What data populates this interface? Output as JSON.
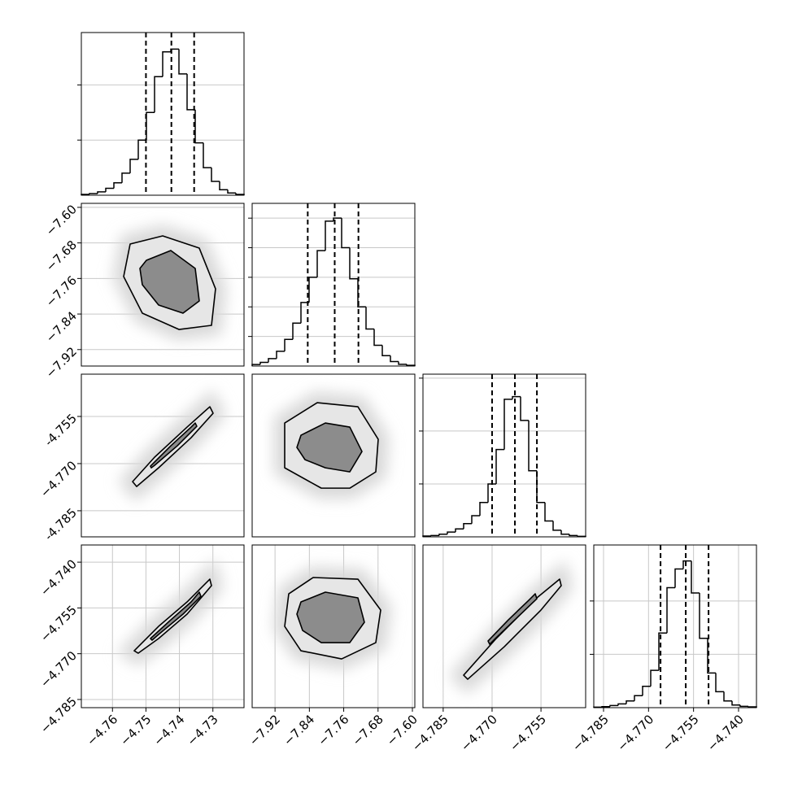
{
  "chart_data": [
    {
      "type": "histogram",
      "color": "#000000",
      "grid": true,
      "bins": [
        -4.7693,
        -4.76687,
        -4.76444,
        -4.76201,
        -4.75958,
        -4.75715,
        -4.75472,
        -4.75229,
        -4.74986,
        -4.74743,
        -4.745,
        -4.74257,
        -4.74014,
        -4.73771,
        -4.73528,
        -4.73285,
        -4.73042,
        -4.72799,
        -4.72556,
        -4.72313,
        -4.7207
      ],
      "values": [
        3,
        6,
        12,
        25,
        45,
        80,
        130,
        200,
        300,
        430,
        520,
        530,
        440,
        310,
        190,
        100,
        50,
        20,
        8,
        3
      ],
      "quantiles": [
        -4.75,
        -4.7424,
        -4.7356
      ],
      "xlim": [
        -4.7693,
        -4.7207
      ],
      "ylim": [
        0,
        590
      ],
      "yticks": [
        200,
        400
      ]
    },
    {
      "type": "contour",
      "color": "#000000",
      "grid": true,
      "xlim": [
        -4.7693,
        -4.7207
      ],
      "ylim": [
        -7.957,
        -7.591
      ],
      "yticks": [
        {
          "value": -7.6,
          "label": "−7.60"
        },
        {
          "value": -7.68,
          "label": "−7.68"
        },
        {
          "value": -7.76,
          "label": "−7.76"
        },
        {
          "value": -7.84,
          "label": "−7.84"
        },
        {
          "value": -7.92,
          "label": "−7.92"
        }
      ],
      "contours": [
        {
          "x": [
            -4.75472,
            -4.745,
            -4.73407,
            -4.72921,
            -4.73042,
            -4.74014,
            -4.75108,
            -4.75666
          ],
          "y": [
            -7.6825,
            -7.6642,
            -7.6917,
            -7.7832,
            -7.8655,
            -7.8747,
            -7.8381,
            -7.7557
          ]
        },
        {
          "x": [
            -4.74986,
            -4.74257,
            -4.73528,
            -4.73407,
            -4.73893,
            -4.74622,
            -4.75108,
            -4.7518
          ],
          "y": [
            -7.7191,
            -7.6971,
            -7.7374,
            -7.8106,
            -7.8381,
            -7.8198,
            -7.774,
            -7.7374
          ]
        }
      ]
    },
    {
      "type": "histogram",
      "color": "#000000",
      "grid": true,
      "bins": [
        -7.9733,
        -7.95435,
        -7.9354,
        -7.91645,
        -7.8975,
        -7.87855,
        -7.8596,
        -7.84065,
        -7.8217,
        -7.80275,
        -7.7838,
        -7.76485,
        -7.7459,
        -7.72695,
        -7.708,
        -7.68905,
        -7.6701,
        -7.65115,
        -7.6322,
        -7.61325,
        -7.5943
      ],
      "values": [
        10,
        25,
        50,
        100,
        180,
        290,
        430,
        600,
        780,
        980,
        1000,
        800,
        590,
        400,
        250,
        140,
        70,
        30,
        12,
        5
      ],
      "quantiles": [
        -7.8438,
        -7.781,
        -7.7257
      ],
      "xlim": [
        -7.9733,
        -7.5943
      ],
      "ylim": [
        0,
        1100
      ],
      "yticks": [
        200,
        400,
        600,
        800,
        1000
      ]
    },
    {
      "type": "contour",
      "color": "#000000",
      "grid": true,
      "xlim": [
        -4.7693,
        -4.7207
      ],
      "ylim": [
        -4.7933,
        -4.74155
      ],
      "yticks": [
        -4.755,
        {
          "value": -4.77,
          "label": "−4.770"
        },
        -4.785
      ],
      "contours": [
        {
          "x": [
            -4.75399,
            -4.74743,
            -4.73771,
            -4.73091,
            -4.72994,
            -4.7365,
            -4.74622,
            -4.75278
          ],
          "y": [
            -4.77574,
            -4.76797,
            -4.75838,
            -4.75191,
            -4.75398,
            -4.76175,
            -4.77134,
            -4.77729
          ]
        },
        {
          "x": [
            -4.74865,
            -4.74257,
            -4.7365,
            -4.73528,
            -4.7348,
            -4.74063,
            -4.74743,
            -4.7484
          ],
          "y": [
            -4.77082,
            -4.76434,
            -4.75838,
            -4.75709,
            -4.75813,
            -4.76434,
            -4.77056,
            -4.77134
          ]
        }
      ]
    },
    {
      "type": "contour",
      "color": "#000000",
      "grid": true,
      "xlim": [
        -7.9733,
        -7.5943
      ],
      "ylim": [
        -4.7933,
        -4.74155
      ],
      "contours": [
        {
          "x": [
            -7.8975,
            -7.8217,
            -7.72695,
            -7.67958,
            -7.68526,
            -7.7459,
            -7.81222,
            -7.8975
          ],
          "y": [
            -4.75709,
            -4.75062,
            -4.75191,
            -4.76227,
            -4.77263,
            -4.77781,
            -4.77781,
            -4.77134
          ]
        },
        {
          "x": [
            -7.8596,
            -7.80275,
            -7.7459,
            -7.71748,
            -7.7459,
            -7.80275,
            -7.85013,
            -7.86908
          ],
          "y": [
            -4.76098,
            -4.75709,
            -4.75838,
            -4.76615,
            -4.77263,
            -4.77134,
            -4.76875,
            -4.76486
          ]
        }
      ]
    },
    {
      "type": "histogram",
      "color": "#000000",
      "grid": true,
      "bins": [
        -4.7912,
        -4.788705,
        -4.78621,
        -4.783715,
        -4.78122,
        -4.778725,
        -4.77623,
        -4.773735,
        -4.77124,
        -4.768745,
        -4.76625,
        -4.763755,
        -4.76126,
        -4.758765,
        -4.75627,
        -4.753775,
        -4.75128,
        -4.748785,
        -4.74629,
        -4.743795,
        -4.7413
      ],
      "values": [
        3,
        5,
        10,
        18,
        30,
        50,
        80,
        130,
        200,
        330,
        520,
        530,
        440,
        250,
        130,
        60,
        25,
        10,
        5,
        2
      ],
      "quantiles": [
        -4.77,
        -4.763,
        -4.75625
      ],
      "xlim": [
        -4.7912,
        -4.7413
      ],
      "ylim": [
        0,
        615
      ],
      "yticks": [
        200,
        400,
        600
      ]
    },
    {
      "type": "contour",
      "color": "#000000",
      "grid": true,
      "xlim": [
        -4.7693,
        -4.7207
      ],
      "ylim": [
        -4.78768,
        -4.73437
      ],
      "xticks": [
        {
          "value": -4.76,
          "label": "−4.76"
        },
        {
          "value": -4.75,
          "label": "−4.75"
        },
        {
          "value": -4.74,
          "label": "−4.74"
        },
        {
          "value": -4.73,
          "label": "−4.73"
        }
      ],
      "yticks": [
        {
          "value": -4.74,
          "label": "−4.740"
        },
        {
          "value": -4.755,
          "label": "−4.755"
        },
        {
          "value": -4.77,
          "label": "−4.770"
        },
        {
          "value": -4.785,
          "label": "−4.785"
        }
      ],
      "contours": [
        {
          "x": [
            -4.75351,
            -4.74622,
            -4.73771,
            -4.73091,
            -4.73042,
            -4.73771,
            -4.74622,
            -4.7523
          ],
          "y": [
            -4.76903,
            -4.76103,
            -4.75303,
            -4.74557,
            -4.7477,
            -4.75703,
            -4.76503,
            -4.76983
          ]
        },
        {
          "x": [
            -4.74865,
            -4.74257,
            -4.7365,
            -4.73407,
            -4.73358,
            -4.73893,
            -4.74622,
            -4.74816
          ],
          "y": [
            -4.76503,
            -4.7589,
            -4.75303,
            -4.74983,
            -4.75117,
            -4.75703,
            -4.7637,
            -4.76556
          ]
        }
      ]
    },
    {
      "type": "contour",
      "color": "#000000",
      "grid": true,
      "xlim": [
        -7.9733,
        -7.5943
      ],
      "ylim": [
        -4.78768,
        -4.73437
      ],
      "xticks": [
        {
          "value": -7.92,
          "label": "−7.92"
        },
        {
          "value": -7.84,
          "label": "−7.84"
        },
        {
          "value": -7.76,
          "label": "−7.76"
        },
        {
          "value": -7.68,
          "label": "−7.68"
        },
        {
          "value": -7.6,
          "label": "−7.60"
        }
      ],
      "contours": [
        {
          "x": [
            -7.88803,
            -7.83118,
            -7.72695,
            -7.67389,
            -7.68526,
            -7.76485,
            -7.8596,
            -7.8975
          ],
          "y": [
            -4.75037,
            -4.74503,
            -4.74557,
            -4.7557,
            -4.76637,
            -4.7717,
            -4.76903,
            -4.76103
          ]
        },
        {
          "x": [
            -7.8596,
            -7.80275,
            -7.72695,
            -7.71179,
            -7.7459,
            -7.81222,
            -7.85581,
            -7.86908
          ],
          "y": [
            -4.75303,
            -4.74983,
            -4.7517,
            -4.7597,
            -4.76637,
            -4.76637,
            -4.76237,
            -4.75703
          ]
        }
      ]
    },
    {
      "type": "contour",
      "color": "#000000",
      "grid": true,
      "xlim": [
        -4.7912,
        -4.7413
      ],
      "ylim": [
        -4.78768,
        -4.73437
      ],
      "xticks": [
        {
          "value": -4.785,
          "label": "−4.785"
        },
        {
          "value": -4.77,
          "label": "−4.770"
        },
        {
          "value": -4.755,
          "label": "−4.755"
        }
      ],
      "contours": [
        {
          "x": [
            -4.77873,
            -4.76875,
            -4.75627,
            -4.74928,
            -4.74879,
            -4.75502,
            -4.76625,
            -4.77748
          ],
          "y": [
            -4.77703,
            -4.76503,
            -4.7517,
            -4.74557,
            -4.7477,
            -4.7557,
            -4.7677,
            -4.77837
          ]
        },
        {
          "x": [
            -4.77124,
            -4.765,
            -4.75877,
            -4.75677,
            -4.75627,
            -4.76251,
            -4.76875,
            -4.77074
          ],
          "y": [
            -4.76583,
            -4.7589,
            -4.7525,
            -4.75037,
            -4.75197,
            -4.75837,
            -4.76477,
            -4.7669
          ]
        }
      ]
    },
    {
      "type": "histogram",
      "color": "#000000",
      "grid": true,
      "bins": [
        -4.78825,
        -4.785539,
        -4.782828,
        -4.780117,
        -4.777406,
        -4.774695,
        -4.771984,
        -4.769273,
        -4.766562,
        -4.763851,
        -4.76114,
        -4.758429,
        -4.755718,
        -4.753007,
        -4.750296,
        -4.747585,
        -4.744874,
        -4.742163,
        -4.739452,
        -4.736741,
        -4.73403
      ],
      "values": [
        2,
        4,
        8,
        14,
        25,
        45,
        80,
        140,
        280,
        450,
        520,
        550,
        430,
        260,
        130,
        60,
        25,
        10,
        5,
        3
      ],
      "quantiles": [
        -4.766,
        -4.7576,
        -4.75
      ],
      "xlim": [
        -4.78825,
        -4.73403
      ],
      "ylim": [
        0,
        610
      ],
      "yticks": [
        200,
        400
      ],
      "xticks": [
        {
          "value": -4.785,
          "label": "−4.785"
        },
        {
          "value": -4.77,
          "label": "−4.770"
        },
        {
          "value": -4.755,
          "label": "−4.755"
        },
        {
          "value": -4.74,
          "label": "−4.740"
        }
      ]
    }
  ]
}
